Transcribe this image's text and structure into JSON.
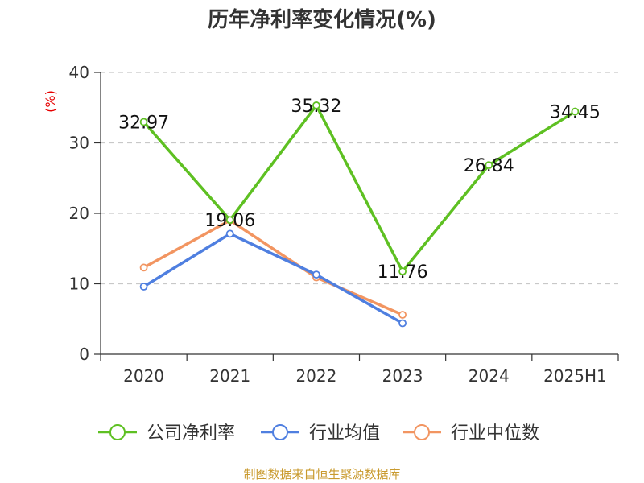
{
  "chart_data": {
    "type": "line",
    "title": "历年净利率变化情况(%)",
    "ylabel": "(%)",
    "xlabel": "",
    "categories": [
      "2020",
      "2021",
      "2022",
      "2023",
      "2024",
      "2025H1"
    ],
    "ylim": [
      0,
      40
    ],
    "yticks": [
      0,
      10,
      20,
      30,
      40
    ],
    "grid": "horizontal-dashed",
    "legend_position": "bottom",
    "series": [
      {
        "name": "公司净利率",
        "color": "#5ec022",
        "values": [
          32.97,
          19.06,
          35.32,
          11.76,
          26.84,
          34.45
        ],
        "data_labels": [
          "32.97",
          "19.06",
          "35.32",
          "11.76",
          "26.84",
          "34.45"
        ]
      },
      {
        "name": "行业均值",
        "color": "#4f7fe0",
        "values": [
          9.6,
          17.1,
          11.3,
          4.4,
          null,
          null
        ]
      },
      {
        "name": "行业中位数",
        "color": "#f29561",
        "values": [
          12.3,
          19.0,
          10.9,
          5.6,
          null,
          null
        ]
      }
    ]
  },
  "footer": "制图数据来自恒生聚源数据库"
}
